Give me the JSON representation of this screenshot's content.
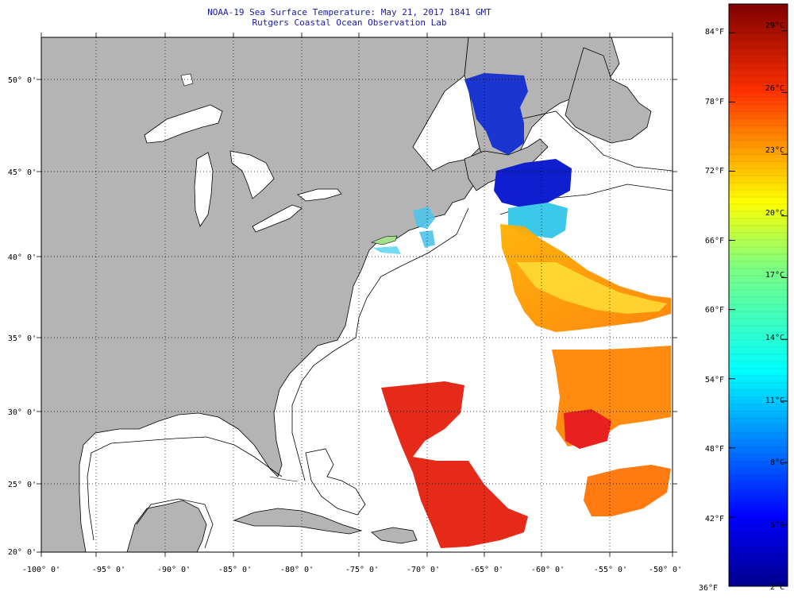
{
  "title": "NOAA-19 Sea Surface Temperature:  May 21, 2017 1841 GMT",
  "subtitle": "Rutgers Coastal Ocean Observation Lab",
  "lon_labels": [
    "-100° 0'",
    "-95° 0'",
    "-90° 0'",
    "-85° 0'",
    "-80° 0'",
    "-75° 0'",
    "-70° 0'",
    "-65° 0'",
    "-60° 0'",
    "-55° 0'",
    "-50° 0'"
  ],
  "lat_labels": [
    "50° 0'",
    "45° 0'",
    "40° 0'",
    "35° 0'",
    "30° 0'",
    "25° 0'",
    "20° 0'"
  ],
  "lon_values": [
    -100,
    -95,
    -90,
    -85,
    -80,
    -75,
    -70,
    -65,
    -60,
    -55,
    -50
  ],
  "lat_values": [
    50,
    45,
    40,
    35,
    30,
    25,
    20
  ],
  "colorbar": {
    "f_labels": [
      "84°F",
      "78°F",
      "72°F",
      "66°F",
      "60°F",
      "54°F",
      "48°F",
      "42°F",
      "36°F"
    ],
    "f_values": [
      84,
      78,
      72,
      66,
      60,
      54,
      48,
      42,
      36
    ],
    "c_labels": [
      "29°C",
      "26°C",
      "23°C",
      "20°C",
      "17°C",
      "14°C",
      "11°C",
      "8°C",
      "5°C",
      "2°C"
    ],
    "c_values": [
      29,
      26,
      23,
      20,
      17,
      14,
      11,
      8,
      5,
      2
    ]
  },
  "colors": {
    "land": "#b4b4b4",
    "title": "#1a1aa8",
    "lake": "#ffffff"
  }
}
